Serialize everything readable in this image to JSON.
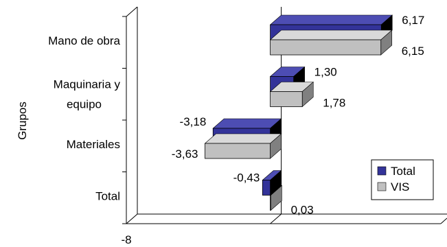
{
  "chart_data": {
    "type": "bar",
    "orientation": "horizontal",
    "style": "3d",
    "ylabel": "Grupos",
    "x_tick_labels": [
      "-8"
    ],
    "categories": [
      "Mano de obra",
      "Maquinaria y equipo",
      "Materiales",
      "Total"
    ],
    "series": [
      {
        "name": "Total",
        "values": [
          6.17,
          1.3,
          -3.18,
          -0.43
        ],
        "labels": [
          "6,17",
          "1,30",
          "-3,18",
          "-0,43"
        ]
      },
      {
        "name": "VIS",
        "values": [
          6.15,
          1.78,
          -3.63,
          0.03
        ],
        "labels": [
          "6,15",
          "1,78",
          "-3,63",
          "0,03"
        ]
      }
    ],
    "xlim": [
      -8,
      9.5
    ],
    "legend_position": "bottom-right",
    "colors": {
      "Total": {
        "face": "#333399",
        "top": "#4d4db3",
        "side": "#000000"
      },
      "VIS": {
        "face": "#c0c0c0",
        "top": "#d9d9d9",
        "side": "#808080"
      },
      "background": "#ffffff",
      "axis": "#000000"
    }
  }
}
